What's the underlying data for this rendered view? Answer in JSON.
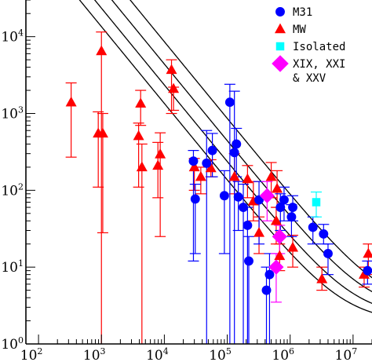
{
  "chart_data": {
    "type": "scatter",
    "x_scale": "log",
    "y_scale": "log",
    "xlim": [
      63,
      20000000
    ],
    "ylim": [
      1,
      30000
    ],
    "x_ticks": [
      {
        "value": 100,
        "base": "10",
        "exp": "2"
      },
      {
        "value": 1000,
        "base": "10",
        "exp": "3"
      },
      {
        "value": 10000,
        "base": "10",
        "exp": "4"
      },
      {
        "value": 100000,
        "base": "10",
        "exp": "5"
      },
      {
        "value": 1000000,
        "base": "10",
        "exp": "6"
      },
      {
        "value": 10000000,
        "base": "10",
        "exp": "7"
      }
    ],
    "y_ticks": [
      {
        "value": 1,
        "base": "10",
        "exp": "0"
      },
      {
        "value": 10,
        "base": "10",
        "exp": "1"
      },
      {
        "value": 100,
        "base": "10",
        "exp": "2"
      },
      {
        "value": 1000,
        "base": "10",
        "exp": "3"
      },
      {
        "value": 10000,
        "base": "10",
        "exp": "4"
      }
    ],
    "curves": [
      {
        "amplitude": 13500000.0,
        "floor": 1.9
      },
      {
        "amplitude": 23500000.0,
        "floor": 2.2
      },
      {
        "amplitude": 44000000.0,
        "floor": 2.6
      },
      {
        "amplitude": 86000000.0,
        "floor": 3.0
      }
    ],
    "series": [
      {
        "name": "MW",
        "marker": "triangle",
        "color": "#ff0000",
        "points": [
          {
            "x": 330,
            "y": 1400,
            "ylo": 270,
            "yhi": 2500
          },
          {
            "x": 890,
            "y": 550,
            "ylo": 110,
            "yhi": 1050
          },
          {
            "x": 1000,
            "y": 6500,
            "ylo": 1,
            "yhi": 11500
          },
          {
            "x": 1050,
            "y": 550,
            "ylo": 28,
            "yhi": 1000
          },
          {
            "x": 3900,
            "y": 510,
            "ylo": 110,
            "yhi": 750
          },
          {
            "x": 4200,
            "y": 1350,
            "ylo": 700,
            "yhi": 2000
          },
          {
            "x": 4400,
            "y": 200,
            "ylo": 1,
            "yhi": 400
          },
          {
            "x": 7900,
            "y": 210,
            "ylo": 80,
            "yhi": 420
          },
          {
            "x": 8600,
            "y": 295,
            "ylo": 25,
            "yhi": 560
          },
          {
            "x": 13000,
            "y": 3700,
            "ylo": 1000,
            "yhi": 5000
          },
          {
            "x": 14000,
            "y": 2100,
            "ylo": 1100,
            "yhi": 2200
          },
          {
            "x": 30000,
            "y": 200,
            "ylo": 100,
            "yhi": 260
          },
          {
            "x": 38000,
            "y": 150,
            "ylo": 90,
            "yhi": 200
          },
          {
            "x": 55000,
            "y": 195,
            "ylo": 150,
            "yhi": 250
          },
          {
            "x": 130000,
            "y": 150,
            "ylo": 90,
            "yhi": 300
          },
          {
            "x": 210000,
            "y": 140,
            "ylo": 80,
            "yhi": 210
          },
          {
            "x": 260000,
            "y": 72,
            "ylo": 40,
            "yhi": 130
          },
          {
            "x": 320000,
            "y": 28,
            "ylo": 15,
            "yhi": 45
          },
          {
            "x": 500000,
            "y": 150,
            "ylo": 80,
            "yhi": 230
          },
          {
            "x": 600000,
            "y": 40,
            "ylo": 20,
            "yhi": 60
          },
          {
            "x": 620000,
            "y": 105,
            "ylo": 60,
            "yhi": 180
          },
          {
            "x": 680000,
            "y": 14,
            "ylo": 9,
            "yhi": 20
          },
          {
            "x": 1100000,
            "y": 18,
            "ylo": 10,
            "yhi": 26
          },
          {
            "x": 3200000,
            "y": 7,
            "ylo": 5,
            "yhi": 10
          },
          {
            "x": 15000000,
            "y": 8,
            "ylo": 5.5,
            "yhi": 10
          },
          {
            "x": 17500000,
            "y": 15,
            "ylo": 8,
            "yhi": 20
          }
        ]
      },
      {
        "name": "M31",
        "marker": "circle",
        "color": "#0000ff",
        "points": [
          {
            "x": 29000,
            "y": 240,
            "ylo": 12,
            "yhi": 330
          },
          {
            "x": 31000,
            "y": 77,
            "ylo": 15,
            "yhi": 120
          },
          {
            "x": 47000,
            "y": 225,
            "ylo": 1,
            "yhi": 600
          },
          {
            "x": 58000,
            "y": 330,
            "ylo": 150,
            "yhi": 550
          },
          {
            "x": 90000,
            "y": 85,
            "ylo": 15,
            "yhi": 180
          },
          {
            "x": 110000,
            "y": 1400,
            "ylo": 1,
            "yhi": 2400
          },
          {
            "x": 130000,
            "y": 310,
            "ylo": 1,
            "yhi": 1950
          },
          {
            "x": 140000,
            "y": 400,
            "ylo": 150,
            "yhi": 640
          },
          {
            "x": 150000,
            "y": 82,
            "ylo": 30,
            "yhi": 130
          },
          {
            "x": 180000,
            "y": 60,
            "ylo": 1,
            "yhi": 120
          },
          {
            "x": 210000,
            "y": 35,
            "ylo": 1,
            "yhi": 60
          },
          {
            "x": 220000,
            "y": 12,
            "ylo": 1,
            "yhi": 25
          },
          {
            "x": 320000,
            "y": 75,
            "ylo": 20,
            "yhi": 130
          },
          {
            "x": 420000,
            "y": 5,
            "ylo": 1,
            "yhi": 10
          },
          {
            "x": 470000,
            "y": 8,
            "ylo": 1,
            "yhi": 15
          },
          {
            "x": 700000,
            "y": 60,
            "ylo": 30,
            "yhi": 90
          },
          {
            "x": 800000,
            "y": 75,
            "ylo": 40,
            "yhi": 110
          },
          {
            "x": 1050000,
            "y": 45,
            "ylo": 25,
            "yhi": 65
          },
          {
            "x": 1100000,
            "y": 60,
            "ylo": 40,
            "yhi": 85
          },
          {
            "x": 2300000,
            "y": 33,
            "ylo": 20,
            "yhi": 45
          },
          {
            "x": 3400000,
            "y": 27,
            "ylo": 20,
            "yhi": 36
          },
          {
            "x": 4000000,
            "y": 15,
            "ylo": 8,
            "yhi": 20
          },
          {
            "x": 17000000,
            "y": 9,
            "ylo": 6,
            "yhi": 12
          }
        ]
      },
      {
        "name": "Isolated",
        "marker": "square",
        "color": "#00ffff",
        "points": [
          {
            "x": 2600000,
            "y": 70,
            "ylo": 45,
            "yhi": 95
          }
        ]
      },
      {
        "name": "XIX, XXI",
        "name_line2": "& XXV",
        "marker": "diamond",
        "color": "#ff00ff",
        "points": [
          {
            "x": 430000,
            "y": 85,
            "ylo": 40,
            "yhi": 130
          },
          {
            "x": 600000,
            "y": 10,
            "ylo": 3.5,
            "yhi": 15
          },
          {
            "x": 680000,
            "y": 25,
            "ylo": 15,
            "yhi": 35
          }
        ]
      }
    ],
    "legend": {
      "position": "top-right",
      "entries": [
        {
          "label": "M31",
          "marker": "circle",
          "color": "#0000ff"
        },
        {
          "label": "MW",
          "marker": "triangle",
          "color": "#ff0000"
        },
        {
          "label": "Isolated",
          "marker": "square",
          "color": "#00ffff"
        },
        {
          "label": "XIX, XXI",
          "label2": "& XXV",
          "marker": "diamond",
          "color": "#ff00ff"
        }
      ]
    }
  }
}
